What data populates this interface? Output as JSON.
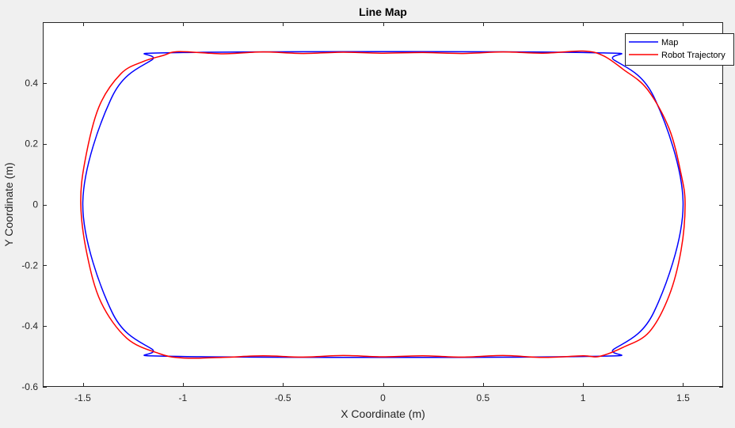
{
  "chart_data": {
    "type": "line",
    "title": "Line Map",
    "xlabel": "X Coordinate (m)",
    "ylabel": "Y Coordinate (m)",
    "xlim": [
      -1.7,
      1.7
    ],
    "ylim": [
      -0.6,
      0.6
    ],
    "xticks": [
      -1.5,
      -1,
      -0.5,
      0,
      0.5,
      1,
      1.5
    ],
    "yticks": [
      -0.6,
      -0.4,
      -0.2,
      0,
      0.2,
      0.4
    ],
    "xtick_labels": [
      "-1.5",
      "-1",
      "-0.5",
      "0",
      "0.5",
      "1",
      "1.5"
    ],
    "ytick_labels": [
      "-0.6",
      "-0.4",
      "-0.2",
      "0",
      "0.2",
      "0.4"
    ],
    "grid": false,
    "legend_position": "top-right",
    "series": [
      {
        "name": "Map",
        "color": "#0000ff",
        "x": [
          -1.0,
          1.0,
          1.156,
          1.354,
          1.5,
          1.354,
          1.156,
          1.0,
          -1.0,
          -1.156,
          -1.354,
          -1.5,
          -1.354,
          -1.156,
          -1.0
        ],
        "y": [
          0.5,
          0.5,
          0.475,
          0.354,
          0.0,
          -0.354,
          -0.475,
          -0.5,
          -0.5,
          -0.475,
          -0.354,
          0.0,
          0.354,
          0.475,
          0.5
        ]
      },
      {
        "name": "Robot Trajectory",
        "color": "#ff0000",
        "x": [
          -1.02,
          -0.8,
          -0.6,
          -0.4,
          -0.2,
          0.0,
          0.2,
          0.4,
          0.6,
          0.8,
          1.0,
          1.1,
          1.2,
          1.32,
          1.43,
          1.49,
          1.51,
          1.49,
          1.43,
          1.33,
          1.2,
          1.08,
          1.0,
          0.8,
          0.6,
          0.4,
          0.2,
          0.0,
          -0.2,
          -0.4,
          -0.6,
          -0.8,
          -1.0,
          -1.12,
          -1.28,
          -1.41,
          -1.48,
          -1.51,
          -1.49,
          -1.42,
          -1.31,
          -1.2,
          -1.1,
          -1.02
        ],
        "y": [
          0.503,
          0.496,
          0.502,
          0.497,
          0.501,
          0.498,
          0.5,
          0.497,
          0.502,
          0.498,
          0.505,
          0.49,
          0.445,
          0.38,
          0.25,
          0.1,
          0.0,
          -0.15,
          -0.3,
          -0.42,
          -0.47,
          -0.5,
          -0.498,
          -0.503,
          -0.497,
          -0.502,
          -0.498,
          -0.501,
          -0.497,
          -0.502,
          -0.498,
          -0.503,
          -0.505,
          -0.49,
          -0.44,
          -0.32,
          -0.16,
          0.0,
          0.14,
          0.32,
          0.43,
          0.47,
          0.49,
          0.503
        ]
      }
    ]
  }
}
